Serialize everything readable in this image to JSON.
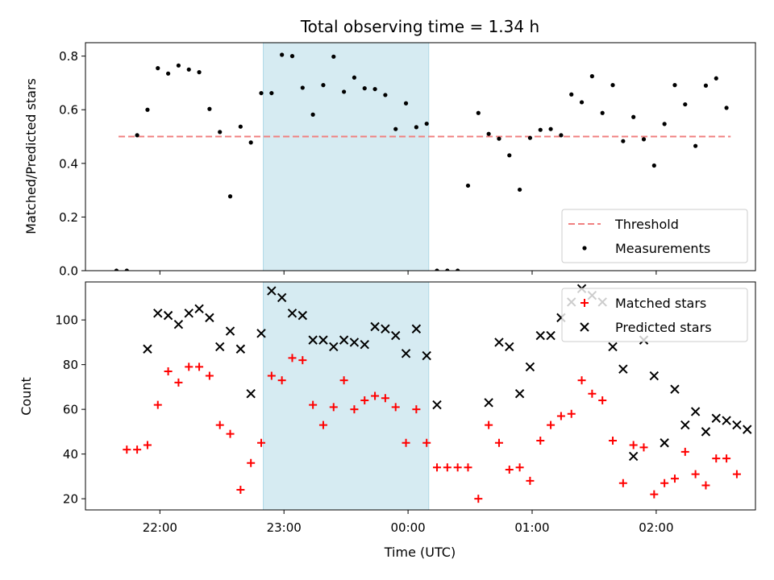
{
  "title": "Total observing time = 1.34 h",
  "chart_data": [
    {
      "type": "scatter",
      "ylabel": "Matched/Predicted stars",
      "xlabel": "",
      "xlim": [
        "21:24",
        "02:48"
      ],
      "ylim": [
        0,
        0.85
      ],
      "yticks": [
        0.0,
        0.2,
        0.4,
        0.6,
        0.8
      ],
      "ytick_labels": [
        "0.0",
        "0.2",
        "0.4",
        "0.6",
        "0.8"
      ],
      "xticks": [
        "22:00",
        "23:00",
        "00:00",
        "01:00",
        "02:00"
      ],
      "shaded_region": [
        "22:50",
        "00:10"
      ],
      "shade_color": "#add8e6",
      "legend_position": "lower right",
      "threshold": {
        "name": "Threshold",
        "value": 0.5,
        "x_range": [
          "21:40",
          "02:36"
        ],
        "color": "#f08080",
        "style": "dashed"
      },
      "series": [
        {
          "name": "Measurements",
          "color": "#000000",
          "marker": "dot",
          "points": [
            [
              "21:39",
              0.0
            ],
            [
              "21:44",
              0.0
            ],
            [
              "21:49",
              0.505
            ],
            [
              "21:54",
              0.6
            ],
            [
              "21:59",
              0.755
            ],
            [
              "22:04",
              0.735
            ],
            [
              "22:09",
              0.765
            ],
            [
              "22:14",
              0.75
            ],
            [
              "22:19",
              0.74
            ],
            [
              "22:24",
              0.603
            ],
            [
              "22:29",
              0.517
            ],
            [
              "22:34",
              0.277
            ],
            [
              "22:39",
              0.537
            ],
            [
              "22:44",
              0.478
            ],
            [
              "22:49",
              0.662
            ],
            [
              "22:54",
              0.662
            ],
            [
              "22:59",
              0.805
            ],
            [
              "23:04",
              0.8
            ],
            [
              "23:09",
              0.682
            ],
            [
              "23:14",
              0.582
            ],
            [
              "23:19",
              0.692
            ],
            [
              "23:24",
              0.798
            ],
            [
              "23:29",
              0.667
            ],
            [
              "23:34",
              0.72
            ],
            [
              "23:39",
              0.68
            ],
            [
              "23:44",
              0.677
            ],
            [
              "23:49",
              0.655
            ],
            [
              "23:54",
              0.528
            ],
            [
              "23:59",
              0.624
            ],
            [
              "00:04",
              0.535
            ],
            [
              "00:09",
              0.548
            ],
            [
              "00:14",
              0.0
            ],
            [
              "00:19",
              0.0
            ],
            [
              "00:24",
              0.0
            ],
            [
              "00:29",
              0.317
            ],
            [
              "00:34",
              0.588
            ],
            [
              "00:39",
              0.51
            ],
            [
              "00:44",
              0.492
            ],
            [
              "00:49",
              0.43
            ],
            [
              "00:54",
              0.302
            ],
            [
              "00:59",
              0.495
            ],
            [
              "01:04",
              0.525
            ],
            [
              "01:09",
              0.528
            ],
            [
              "01:14",
              0.505
            ],
            [
              "01:19",
              0.657
            ],
            [
              "01:24",
              0.628
            ],
            [
              "01:29",
              0.725
            ],
            [
              "01:34",
              0.588
            ],
            [
              "01:39",
              0.692
            ],
            [
              "01:44",
              0.483
            ],
            [
              "01:49",
              0.573
            ],
            [
              "01:54",
              0.49
            ],
            [
              "01:59",
              0.392
            ],
            [
              "02:04",
              0.547
            ],
            [
              "02:09",
              0.692
            ],
            [
              "02:14",
              0.62
            ],
            [
              "02:19",
              0.465
            ],
            [
              "02:24",
              0.69
            ],
            [
              "02:29",
              0.717
            ],
            [
              "02:34",
              0.607
            ]
          ]
        }
      ]
    },
    {
      "type": "scatter",
      "ylabel": "Count",
      "xlabel": "Time (UTC)",
      "xlim": [
        "21:24",
        "02:48"
      ],
      "ylim": [
        15,
        117
      ],
      "yticks": [
        20,
        40,
        60,
        80,
        100
      ],
      "ytick_labels": [
        "20",
        "40",
        "60",
        "80",
        "100"
      ],
      "xticks": [
        "22:00",
        "23:00",
        "00:00",
        "01:00",
        "02:00"
      ],
      "shaded_region": [
        "22:50",
        "00:10"
      ],
      "shade_color": "#add8e6",
      "legend_position": "upper right",
      "series": [
        {
          "name": "Matched stars",
          "color": "#ff0000",
          "marker": "plus",
          "points": [
            [
              "21:44",
              42
            ],
            [
              "21:49",
              42
            ],
            [
              "21:54",
              44
            ],
            [
              "21:59",
              62
            ],
            [
              "22:04",
              77
            ],
            [
              "22:09",
              72
            ],
            [
              "22:14",
              79
            ],
            [
              "22:19",
              79
            ],
            [
              "22:24",
              75
            ],
            [
              "22:29",
              53
            ],
            [
              "22:34",
              49
            ],
            [
              "22:39",
              24
            ],
            [
              "22:44",
              36
            ],
            [
              "22:49",
              45
            ],
            [
              "22:54",
              75
            ],
            [
              "22:59",
              73
            ],
            [
              "23:04",
              83
            ],
            [
              "23:09",
              82
            ],
            [
              "23:14",
              62
            ],
            [
              "23:19",
              53
            ],
            [
              "23:24",
              61
            ],
            [
              "23:29",
              73
            ],
            [
              "23:34",
              60
            ],
            [
              "23:39",
              64
            ],
            [
              "23:44",
              66
            ],
            [
              "23:49",
              65
            ],
            [
              "23:54",
              61
            ],
            [
              "23:59",
              45
            ],
            [
              "00:04",
              60
            ],
            [
              "00:09",
              45
            ],
            [
              "00:14",
              34
            ],
            [
              "00:19",
              34
            ],
            [
              "00:24",
              34
            ],
            [
              "00:29",
              34
            ],
            [
              "00:34",
              20
            ],
            [
              "00:39",
              53
            ],
            [
              "00:44",
              45
            ],
            [
              "00:49",
              33
            ],
            [
              "00:54",
              34
            ],
            [
              "00:59",
              28
            ],
            [
              "01:04",
              46
            ],
            [
              "01:09",
              53
            ],
            [
              "01:14",
              57
            ],
            [
              "01:19",
              58
            ],
            [
              "01:24",
              73
            ],
            [
              "01:29",
              67
            ],
            [
              "01:34",
              64
            ],
            [
              "01:39",
              46
            ],
            [
              "01:44",
              27
            ],
            [
              "01:49",
              44
            ],
            [
              "01:54",
              43
            ],
            [
              "01:59",
              22
            ],
            [
              "02:04",
              27
            ],
            [
              "02:09",
              29
            ],
            [
              "02:14",
              41
            ],
            [
              "02:19",
              31
            ],
            [
              "02:24",
              26
            ],
            [
              "02:29",
              38
            ],
            [
              "02:34",
              38
            ],
            [
              "02:39",
              31
            ]
          ]
        },
        {
          "name": "Predicted stars",
          "color": "#000000",
          "marker": "x",
          "points": [
            [
              "21:54",
              87
            ],
            [
              "21:59",
              103
            ],
            [
              "22:04",
              102
            ],
            [
              "22:09",
              98
            ],
            [
              "22:14",
              103
            ],
            [
              "22:19",
              105
            ],
            [
              "22:24",
              101
            ],
            [
              "22:29",
              88
            ],
            [
              "22:34",
              95
            ],
            [
              "22:39",
              87
            ],
            [
              "22:44",
              67
            ],
            [
              "22:49",
              94
            ],
            [
              "22:54",
              113
            ],
            [
              "22:59",
              110
            ],
            [
              "23:04",
              103
            ],
            [
              "23:09",
              102
            ],
            [
              "23:14",
              91
            ],
            [
              "23:19",
              91
            ],
            [
              "23:24",
              88
            ],
            [
              "23:29",
              91
            ],
            [
              "23:34",
              90
            ],
            [
              "23:39",
              89
            ],
            [
              "23:44",
              97
            ],
            [
              "23:49",
              96
            ],
            [
              "23:54",
              93
            ],
            [
              "23:59",
              85
            ],
            [
              "00:04",
              96
            ],
            [
              "00:09",
              84
            ],
            [
              "00:14",
              62
            ],
            [
              "00:39",
              63
            ],
            [
              "00:44",
              90
            ],
            [
              "00:49",
              88
            ],
            [
              "00:54",
              67
            ],
            [
              "00:59",
              79
            ],
            [
              "01:04",
              93
            ],
            [
              "01:09",
              93
            ],
            [
              "01:14",
              101
            ],
            [
              "01:19",
              108
            ],
            [
              "01:24",
              114
            ],
            [
              "01:29",
              111
            ],
            [
              "01:34",
              108
            ],
            [
              "01:39",
              88
            ],
            [
              "01:44",
              78
            ],
            [
              "01:49",
              39
            ],
            [
              "01:54",
              91
            ],
            [
              "01:59",
              75
            ],
            [
              "02:04",
              45
            ],
            [
              "02:09",
              69
            ],
            [
              "02:14",
              53
            ],
            [
              "02:19",
              59
            ],
            [
              "02:24",
              50
            ],
            [
              "02:29",
              56
            ],
            [
              "02:34",
              55
            ],
            [
              "02:39",
              53
            ],
            [
              "02:44",
              51
            ]
          ]
        }
      ]
    }
  ]
}
